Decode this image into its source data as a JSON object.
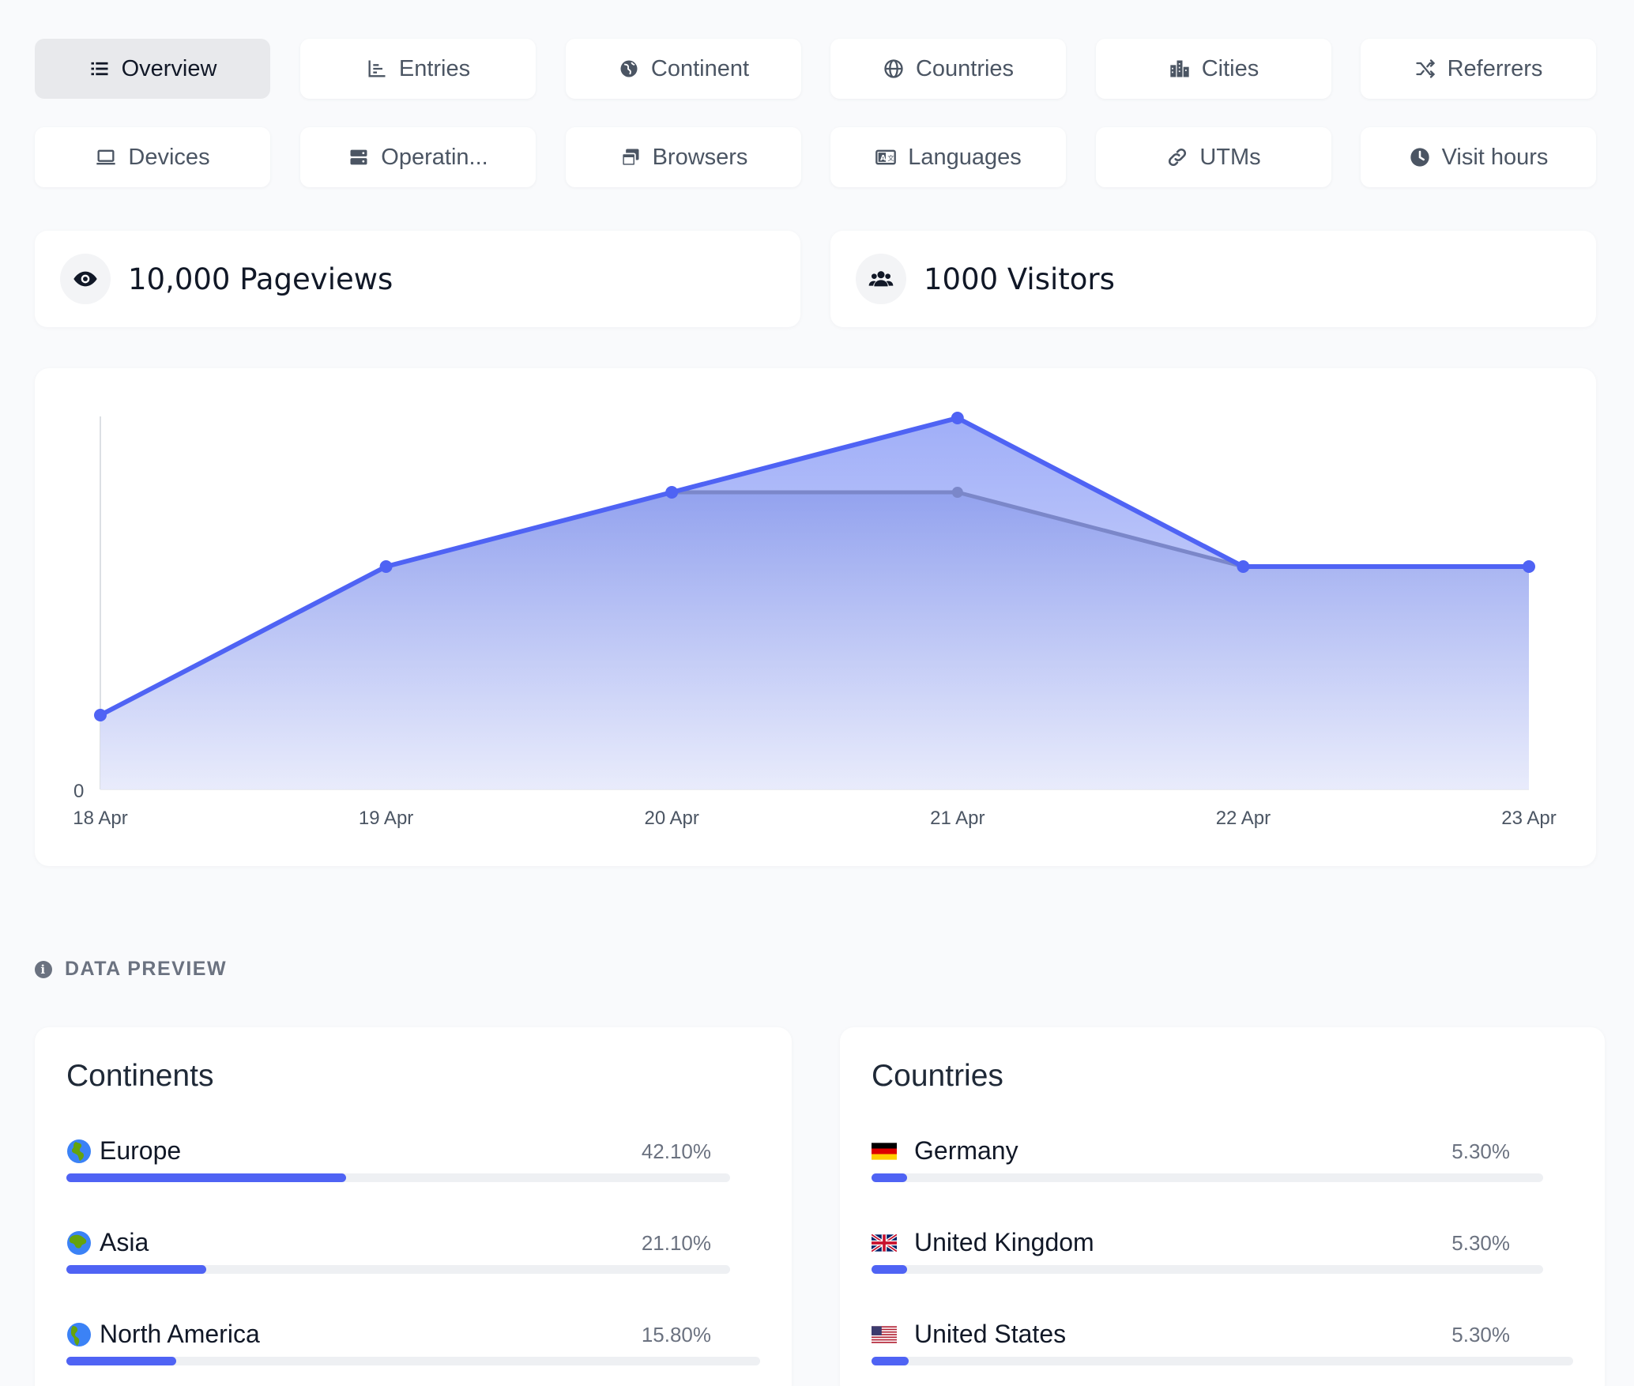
{
  "tabs": [
    {
      "label": "Overview",
      "icon": "list-icon",
      "active": true
    },
    {
      "label": "Entries",
      "icon": "bar-chart-icon",
      "active": false
    },
    {
      "label": "Continent",
      "icon": "earth-icon",
      "active": false
    },
    {
      "label": "Countries",
      "icon": "globe-icon",
      "active": false
    },
    {
      "label": "Cities",
      "icon": "city-icon",
      "active": false
    },
    {
      "label": "Referrers",
      "icon": "shuffle-icon",
      "active": false
    },
    {
      "label": "Devices",
      "icon": "laptop-icon",
      "active": false
    },
    {
      "label": "Operatin...",
      "icon": "server-icon",
      "active": false
    },
    {
      "label": "Browsers",
      "icon": "browser-windows-icon",
      "active": false
    },
    {
      "label": "Languages",
      "icon": "language-icon",
      "active": false
    },
    {
      "label": "UTMs",
      "icon": "link-icon",
      "active": false
    },
    {
      "label": "Visit hours",
      "icon": "clock-icon",
      "active": false
    }
  ],
  "stats": {
    "pageviews": "10,000 Pageviews",
    "visitors": "1000 Visitors"
  },
  "colors": {
    "accent": "#4f63f4",
    "secondary_line": "#7b87c9",
    "area_top": "#8fa0f7",
    "area_bottom": "#e6e9fb"
  },
  "chart_data": {
    "type": "area",
    "categories": [
      "18 Apr",
      "19 Apr",
      "20 Apr",
      "21 Apr",
      "22 Apr",
      "23 Apr"
    ],
    "series": [
      {
        "values": [
          2,
          6,
          8,
          10,
          6,
          6
        ]
      },
      {
        "values": [
          2,
          6,
          8,
          8,
          6,
          6
        ]
      }
    ],
    "ylim": [
      0,
      10
    ],
    "ytick_labels": [
      "0"
    ],
    "grid": false
  },
  "data_preview": {
    "heading": "DATA PREVIEW",
    "continents": {
      "title": "Continents",
      "rows": [
        {
          "name": "Europe",
          "pct": "42.10%",
          "value": 0.421,
          "icon": "globe-europe-icon"
        },
        {
          "name": "Asia",
          "pct": "21.10%",
          "value": 0.211,
          "icon": "globe-asia-icon"
        },
        {
          "name": "North America",
          "pct": "15.80%",
          "value": 0.158,
          "icon": "globe-americas-icon"
        }
      ]
    },
    "countries": {
      "title": "Countries",
      "rows": [
        {
          "name": "Germany",
          "pct": "5.30%",
          "value": 0.053,
          "icon": "flag-germany-icon"
        },
        {
          "name": "United Kingdom",
          "pct": "5.30%",
          "value": 0.053,
          "icon": "flag-uk-icon"
        },
        {
          "name": "United States",
          "pct": "5.30%",
          "value": 0.053,
          "icon": "flag-us-icon"
        }
      ]
    }
  }
}
